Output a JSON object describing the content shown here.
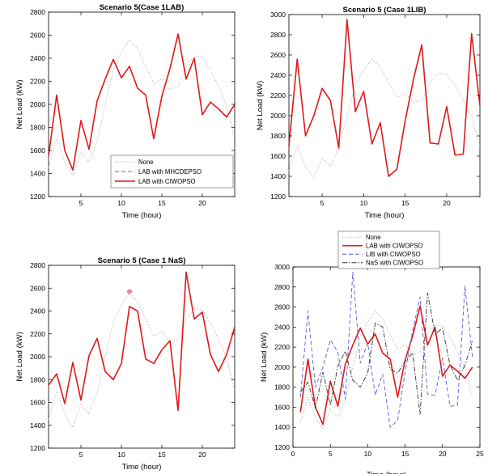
{
  "colors": {
    "none_line": "#b8b8b8",
    "mhcdepso_line": "#6b6bd8",
    "ciwopso_line": "#e01818",
    "lib_line": "#5a5ae0",
    "nas_line": "#333333",
    "axis": "#000000",
    "background": "#ffffff"
  },
  "chart_data": [
    {
      "type": "line",
      "title": "Scenario 5(Case 1LAB)",
      "xlabel": "Time (hour)",
      "ylabel": "Net Load (kW)",
      "xlim": [
        1,
        24
      ],
      "ylim": [
        1200,
        2800
      ],
      "xticks": [
        5,
        10,
        15,
        20
      ],
      "yticks": [
        1200,
        1400,
        1600,
        1800,
        2000,
        2200,
        2400,
        2600,
        2800
      ],
      "legend": "bottom-right",
      "grid": false,
      "x": [
        1,
        2,
        3,
        4,
        5,
        6,
        7,
        8,
        9,
        10,
        11,
        12,
        13,
        14,
        15,
        16,
        17,
        18,
        19,
        20,
        21,
        22,
        23,
        24
      ],
      "series": [
        {
          "name": "None",
          "style": "dotted",
          "color_key": "none_line",
          "values": [
            1450,
            1700,
            1500,
            1380,
            1580,
            1500,
            1680,
            2000,
            2300,
            2450,
            2560,
            2480,
            2330,
            2180,
            2220,
            2130,
            2150,
            2330,
            2420,
            2410,
            2300,
            2150,
            1990,
            1700
          ]
        },
        {
          "name": "LAB with MHCDEPSO",
          "style": "dashed",
          "color_key": "mhcdepso_line",
          "values": [
            1550,
            2080,
            1600,
            1430,
            1860,
            1610,
            2030,
            2220,
            2390,
            2230,
            2330,
            2140,
            2080,
            1700,
            2070,
            2310,
            2610,
            2220,
            2400,
            1910,
            2020,
            1960,
            1890,
            2000
          ]
        },
        {
          "name": "LAB with CIWOPSO",
          "style": "solid",
          "color_key": "ciwopso_line",
          "values": [
            1550,
            2080,
            1600,
            1430,
            1860,
            1610,
            2030,
            2220,
            2390,
            2230,
            2330,
            2140,
            2080,
            1700,
            2070,
            2310,
            2610,
            2220,
            2400,
            1910,
            2020,
            1960,
            1890,
            2000
          ]
        }
      ]
    },
    {
      "type": "line",
      "title": "Scenario 5 (Case 1LIB)",
      "xlabel": "Time (hour)",
      "ylabel": "Net Load (kW)",
      "xlim": [
        1,
        24
      ],
      "ylim": [
        1200,
        3000
      ],
      "xticks": [
        5,
        10,
        15,
        20
      ],
      "yticks": [
        1200,
        1400,
        1600,
        1800,
        2000,
        2200,
        2400,
        2600,
        2800,
        3000
      ],
      "grid": false,
      "x": [
        1,
        2,
        3,
        4,
        5,
        6,
        7,
        8,
        9,
        10,
        11,
        12,
        13,
        14,
        15,
        16,
        17,
        18,
        19,
        20,
        21,
        22,
        23,
        24
      ],
      "series": [
        {
          "name": "None",
          "style": "dotted",
          "color_key": "none_line",
          "values": [
            1450,
            1700,
            1500,
            1380,
            1580,
            1500,
            1680,
            2000,
            2300,
            2450,
            2560,
            2480,
            2330,
            2180,
            2220,
            2130,
            2150,
            2330,
            2420,
            2410,
            2300,
            2150,
            1990,
            1700
          ]
        },
        {
          "name": "LIB with CIWOPSO",
          "style": "solid",
          "color_key": "ciwopso_line",
          "values": [
            1700,
            2560,
            1800,
            2000,
            2270,
            2150,
            1680,
            2950,
            2040,
            2240,
            1720,
            1930,
            1400,
            1470,
            1950,
            2360,
            2700,
            1730,
            1720,
            2090,
            1610,
            1620,
            2810,
            2100
          ]
        }
      ]
    },
    {
      "type": "line",
      "title": "Scenario 5 (Case 1 NaS)",
      "xlabel": "Time (hour)",
      "ylabel": "Net Load (kW)",
      "xlim": [
        1,
        24
      ],
      "ylim": [
        1200,
        2800
      ],
      "xticks": [
        5,
        10,
        15,
        20
      ],
      "yticks": [
        1200,
        1400,
        1600,
        1800,
        2000,
        2200,
        2400,
        2600,
        2800
      ],
      "grid": false,
      "x": [
        1,
        2,
        3,
        4,
        5,
        6,
        7,
        8,
        9,
        10,
        11,
        12,
        13,
        14,
        15,
        16,
        17,
        18,
        19,
        20,
        21,
        22,
        23,
        24
      ],
      "marker": {
        "x": 11,
        "y": 2570
      },
      "series": [
        {
          "name": "None",
          "style": "dotted",
          "color_key": "none_line",
          "values": [
            1450,
            1700,
            1500,
            1380,
            1580,
            1500,
            1680,
            2000,
            2300,
            2450,
            2560,
            2480,
            2330,
            2180,
            2220,
            2130,
            2150,
            2330,
            2420,
            2410,
            2300,
            2150,
            1990,
            1700
          ]
        },
        {
          "name": "NaS with CIWOPSO",
          "style": "solid",
          "color_key": "ciwopso_line",
          "values": [
            1750,
            1850,
            1590,
            1950,
            1620,
            2010,
            2160,
            1870,
            1800,
            1940,
            2440,
            2400,
            1980,
            1940,
            2060,
            2140,
            1530,
            2740,
            2330,
            2390,
            2020,
            1870,
            2020,
            2260
          ]
        }
      ]
    },
    {
      "type": "line",
      "title": "",
      "xlabel": "Time (hour)",
      "ylabel": "Net Load (kW)",
      "xlim": [
        0,
        25
      ],
      "ylim": [
        1200,
        3000
      ],
      "xticks": [
        0,
        5,
        10,
        15,
        20,
        25
      ],
      "yticks": [
        1200,
        1400,
        1600,
        1800,
        2000,
        2200,
        2400,
        2600,
        2800,
        3000
      ],
      "legend": "top",
      "grid": false,
      "x": [
        1,
        2,
        3,
        4,
        5,
        6,
        7,
        8,
        9,
        10,
        11,
        12,
        13,
        14,
        15,
        16,
        17,
        18,
        19,
        20,
        21,
        22,
        23,
        24
      ],
      "series": [
        {
          "name": "None",
          "style": "dotted",
          "color_key": "none_line",
          "values": [
            1450,
            1700,
            1500,
            1380,
            1580,
            1500,
            1680,
            2000,
            2300,
            2450,
            2560,
            2480,
            2330,
            2180,
            2220,
            2130,
            2150,
            2330,
            2420,
            2410,
            2300,
            2150,
            1990,
            1700
          ]
        },
        {
          "name": "LAB with CIWOPSO",
          "style": "solid",
          "color_key": "ciwopso_line",
          "values": [
            1550,
            2080,
            1600,
            1430,
            1860,
            1610,
            2030,
            2220,
            2390,
            2230,
            2330,
            2140,
            2080,
            1700,
            2070,
            2310,
            2610,
            2220,
            2400,
            1910,
            2020,
            1960,
            1890,
            2000
          ]
        },
        {
          "name": "LIB with CIWOPSO",
          "style": "dashed",
          "color_key": "lib_line",
          "values": [
            1700,
            2560,
            1800,
            2000,
            2270,
            2150,
            1680,
            2950,
            2040,
            2240,
            1720,
            1930,
            1400,
            1470,
            1950,
            2360,
            2700,
            1730,
            1720,
            2090,
            1610,
            1620,
            2810,
            2100
          ]
        },
        {
          "name": "NaS with CIWOPSO",
          "style": "dashdot",
          "color_key": "nas_line",
          "values": [
            1750,
            1850,
            1590,
            1950,
            1620,
            2010,
            2160,
            1870,
            1800,
            1940,
            2440,
            2400,
            1980,
            1940,
            2060,
            2140,
            1530,
            2740,
            2330,
            2390,
            2020,
            1870,
            2020,
            2260
          ]
        }
      ]
    }
  ]
}
